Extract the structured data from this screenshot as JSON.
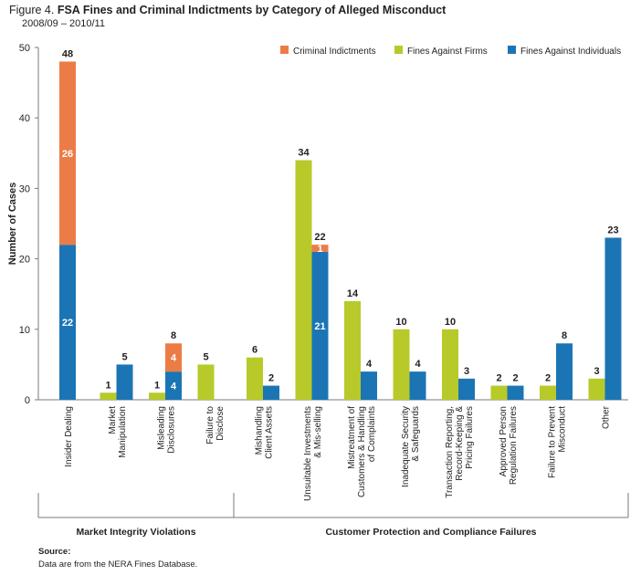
{
  "figure": {
    "number": "Figure 4.",
    "title": "FSA Fines and Criminal Indictments by Category of Alleged Misconduct",
    "subtitle": "2008/09 – 2010/11"
  },
  "source": {
    "label": "Source:",
    "text": "Data are from the NERA Fines Database."
  },
  "colors": {
    "criminal": "#ec7c46",
    "firms": "#b7ca2a",
    "individuals": "#1b75b4",
    "axis": "#7a7a7a"
  },
  "chart_data": {
    "type": "bar",
    "title": "FSA Fines and Criminal Indictments by Category of Alleged Misconduct",
    "subtitle": "2008/09 – 2010/11",
    "xlabel": "",
    "ylabel": "Number of Cases",
    "ylim": [
      0,
      50
    ],
    "yticks": [
      0,
      10,
      20,
      30,
      40,
      50
    ],
    "grid": false,
    "legend_position": "top-right",
    "categories": [
      "Insider Dealing",
      "Market Manipulation",
      "Misleading Disclosures",
      "Failure to Disclose",
      "Mishandling Client Assets",
      "Unsuitable Investments & Mis-selling",
      "Mistreatment of Customers & Handling of Complaints",
      "Inadequate Security & Safeguards",
      "Transaction Reporting, Record-Keeping & Pricing Failures",
      "Approved Person Regulation Failures",
      "Failure to Prevent Misconduct",
      "Other"
    ],
    "category_labels": [
      [
        "Insider Dealing"
      ],
      [
        "Market",
        "Manipulation"
      ],
      [
        "Misleading",
        "Disclosures"
      ],
      [
        "Failure to",
        "Disclose"
      ],
      [
        "Mishandling",
        "Client Assets"
      ],
      [
        "Unsuitable Investments",
        "& Mis-selling"
      ],
      [
        "Mistreatment of",
        "Customers & Handling",
        "of Complaints"
      ],
      [
        "Inadequate Security",
        "& Safeguards"
      ],
      [
        "Transaction Reporting,",
        "Record-Keeping &",
        "Pricing Failures"
      ],
      [
        "Approved Person",
        "Regulation Failures"
      ],
      [
        "Failure to Prevent",
        "Misconduct"
      ],
      [
        "Other"
      ]
    ],
    "series": [
      {
        "name": "Criminal Indictments",
        "values": [
          26,
          0,
          4,
          0,
          0,
          1,
          0,
          0,
          0,
          0,
          0,
          0
        ]
      },
      {
        "name": "Fines Against Firms",
        "values": [
          0,
          1,
          1,
          5,
          6,
          34,
          14,
          10,
          10,
          2,
          2,
          3
        ]
      },
      {
        "name": "Fines Against Individuals",
        "values": [
          22,
          5,
          4,
          0,
          2,
          21,
          4,
          4,
          3,
          2,
          8,
          23
        ]
      }
    ],
    "legend": [
      "Criminal Indictments",
      "Fines Against Firms",
      "Fines Against Individuals"
    ],
    "groups": [
      {
        "label": "Market Integrity Violations",
        "categories": [
          0,
          1,
          2,
          3
        ]
      },
      {
        "label": "Customer Protection and Compliance Failures",
        "categories": [
          4,
          5,
          6,
          7,
          8,
          9,
          10,
          11
        ]
      }
    ]
  }
}
